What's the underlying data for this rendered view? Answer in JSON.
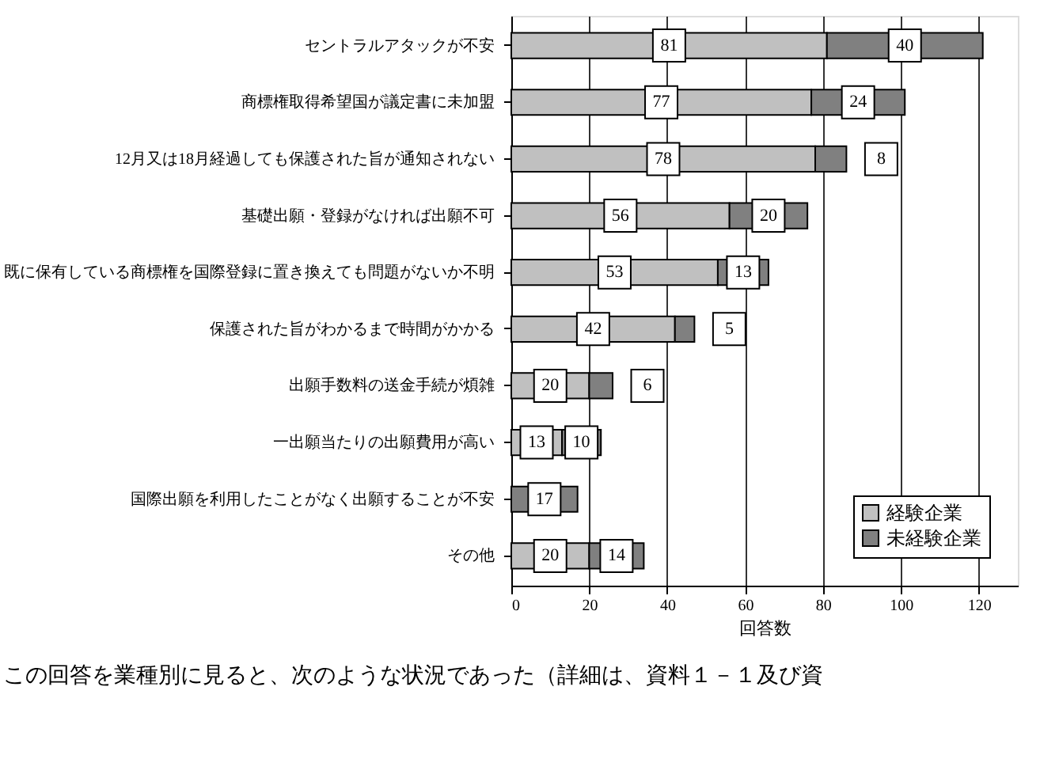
{
  "chart_data": {
    "type": "bar",
    "orientation": "horizontal",
    "stacked": true,
    "categories": [
      "セントラルアタックが不安",
      "商標権取得希望国が議定書に未加盟",
      "12月又は18月経過しても保護された旨が通知されない",
      "基礎出願・登録がなければ出願不可",
      "既に保有している商標権を国際登録に置き換えても問題がないか不明",
      "保護された旨がわかるまで時間がかかる",
      "出願手数料の送金手続が煩雑",
      "一出願当たりの出願費用が高い",
      "国際出願を利用したことがなく出願することが不安",
      "その他"
    ],
    "series": [
      {
        "name": "経験企業",
        "color": "#c0c0c0",
        "values": [
          81,
          77,
          78,
          56,
          53,
          42,
          20,
          13,
          0,
          20
        ],
        "value_labels": [
          "81",
          "77",
          "78",
          "56",
          "53",
          "42",
          "20",
          "13",
          null,
          "20"
        ]
      },
      {
        "name": "未経験企業",
        "color": "#808080",
        "values": [
          40,
          24,
          8,
          20,
          13,
          5,
          6,
          10,
          17,
          14
        ],
        "value_labels": [
          "40",
          "24",
          "8",
          "20",
          "13",
          "5",
          "6",
          "10",
          "17",
          "14"
        ]
      }
    ],
    "xlabel": "回答数",
    "xlim": [
      0,
      130
    ],
    "xticks": [
      0,
      20,
      40,
      60,
      80,
      100,
      120
    ],
    "grid": "x",
    "legend": "bottom right",
    "annotations": [
      "この回答を業種別に見ると、次のような状況であった（詳細は、資料１－１及び資"
    ]
  }
}
